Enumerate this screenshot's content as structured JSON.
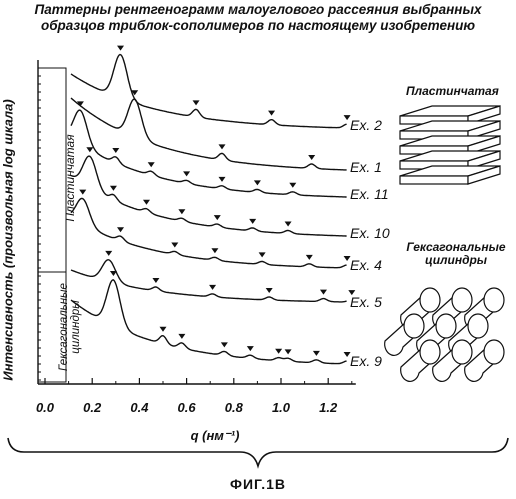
{
  "chart_data": {
    "type": "line",
    "title_line1": "Паттерны рентгенограмм малоуглового рассеяния выбранных",
    "title_line2": "образцов триблок-сополимеров по настоящему изобретению",
    "xlabel": "q (нм⁻¹)",
    "ylabel": "Интенсивность (произвольная log шкала)",
    "xlim": [
      0.0,
      1.3
    ],
    "x_ticks": [
      "0.0",
      "0.2",
      "0.4",
      "0.6",
      "0.8",
      "1.0",
      "1.2"
    ],
    "log_scale_y": true,
    "grid": false,
    "series": [
      {
        "name": "Ex. 2",
        "peak_q": [
          0.32,
          0.64,
          0.96,
          1.28
        ]
      },
      {
        "name": "Ex. 1",
        "peak_q": [
          0.38,
          0.75,
          1.13
        ]
      },
      {
        "name": "Ex. 11",
        "peak_q": [
          0.15,
          0.3,
          0.45,
          0.6,
          0.75,
          0.9,
          1.05
        ]
      },
      {
        "name": "Ex. 10",
        "peak_q": [
          0.19,
          0.29,
          0.43,
          0.58,
          0.73,
          0.88,
          1.03
        ]
      },
      {
        "name": "Ex. 4",
        "peak_q": [
          0.16,
          0.32,
          0.55,
          0.72,
          0.92,
          1.12,
          1.28
        ]
      },
      {
        "name": "Ex. 5",
        "peak_q": [
          0.27,
          0.47,
          0.71,
          0.95,
          1.18,
          1.3
        ]
      },
      {
        "name": "Ex. 9",
        "peak_q": [
          0.29,
          0.5,
          0.58,
          0.76,
          0.87,
          0.99,
          1.03,
          1.15,
          1.28
        ]
      }
    ],
    "morphology_labels": [
      "Пластинчатая",
      "Гексагональные цилиндры"
    ],
    "caption": "ФИГ.1В"
  }
}
